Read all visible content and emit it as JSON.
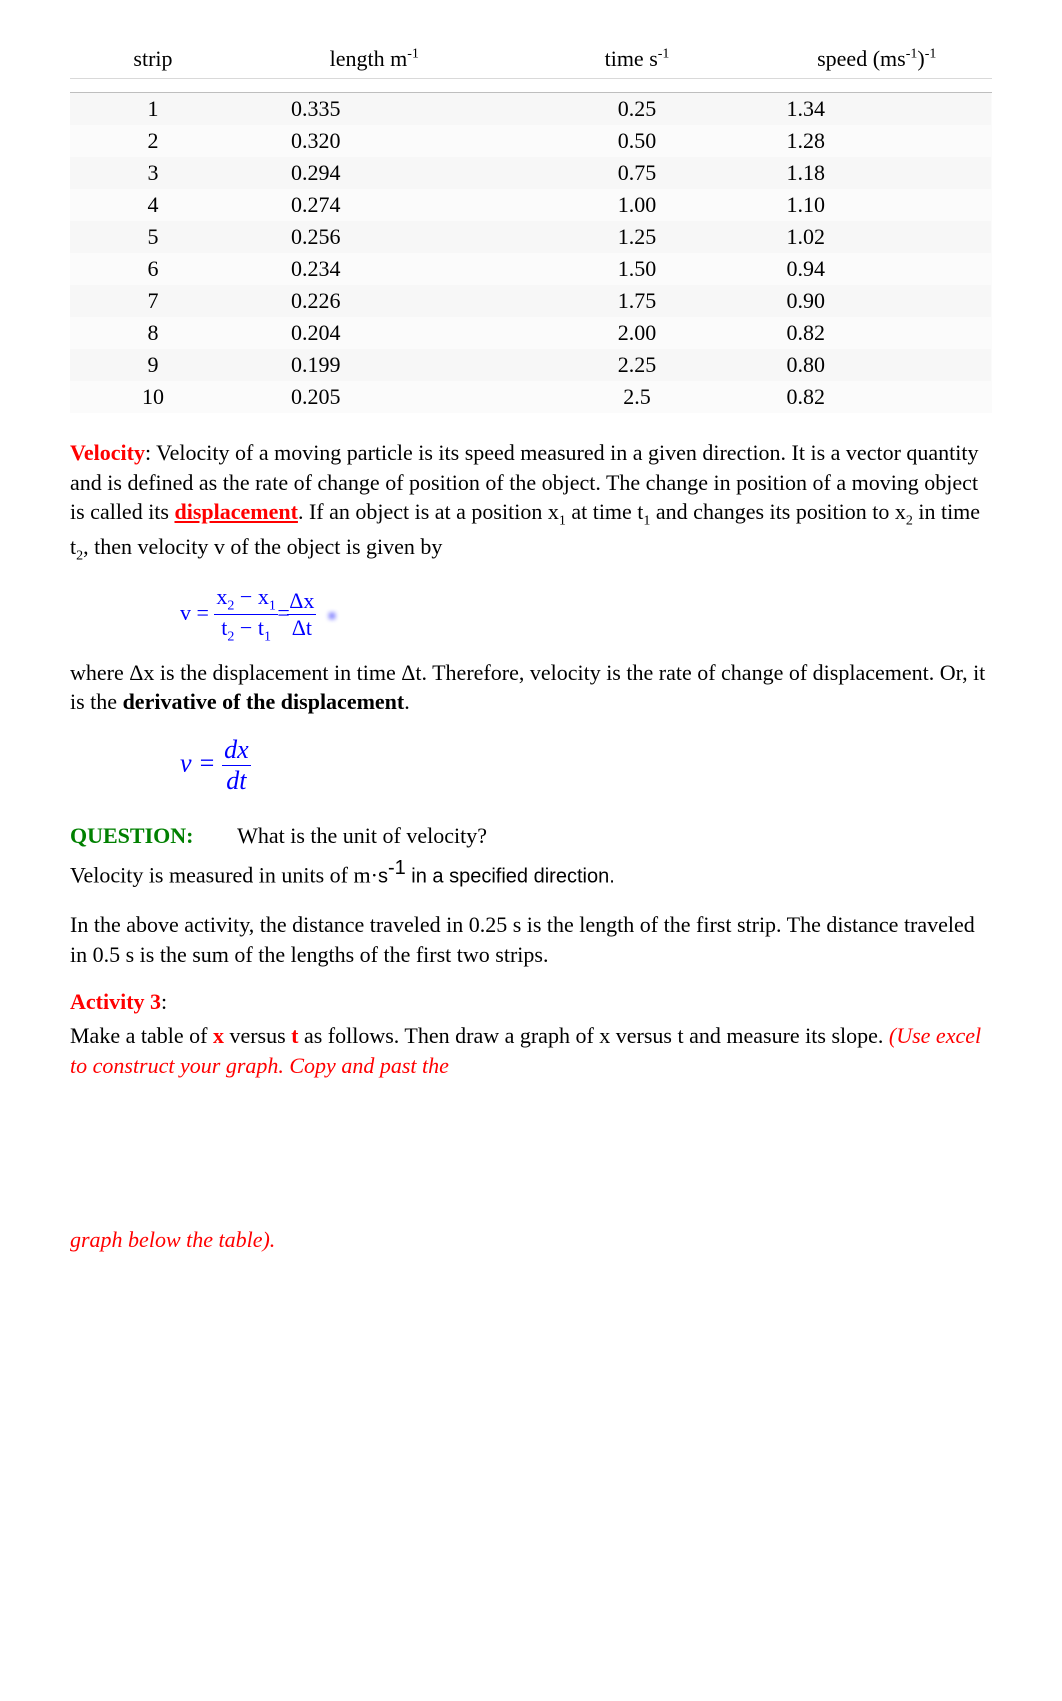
{
  "table": {
    "headers": {
      "strip": "strip",
      "length": "length m",
      "length_sup": "-1",
      "time": "time s",
      "time_sup": "-1",
      "speed": "speed (ms",
      "speed_sup1": "-1",
      "speed_mid": ")",
      "speed_sup2": "-1"
    },
    "rows": [
      {
        "strip": "1",
        "length": "0.335",
        "time": "0.25",
        "speed": "1.34"
      },
      {
        "strip": "2",
        "length": "0.320",
        "time": "0.50",
        "speed": "1.28"
      },
      {
        "strip": "3",
        "length": "0.294",
        "time": "0.75",
        "speed": "1.18"
      },
      {
        "strip": "4",
        "length": "0.274",
        "time": "1.00",
        "speed": "1.10"
      },
      {
        "strip": "5",
        "length": "0.256",
        "time": "1.25",
        "speed": "1.02"
      },
      {
        "strip": "6",
        "length": "0.234",
        "time": "1.50",
        "speed": "0.94"
      },
      {
        "strip": "7",
        "length": "0.226",
        "time": "1.75",
        "speed": "0.90"
      },
      {
        "strip": "8",
        "length": "0.204",
        "time": "2.00",
        "speed": "0.82"
      },
      {
        "strip": "9",
        "length": "0.199",
        "time": "2.25",
        "speed": "0.80"
      },
      {
        "strip": "10",
        "length": "0.205",
        "time": "2.5",
        "speed": "0.82"
      }
    ]
  },
  "velocity": {
    "label": "Velocity",
    "colon": ":   ",
    "text1": "Velocity of a moving particle is its speed measured in a given direction. It is a vector quantity and is defined as the rate of change of position of the object. The change in position of a moving object is called its ",
    "displacement": "displacement",
    "text2": ". If an object is at a position x",
    "sub1": "1",
    "text3": " at time t",
    "sub2": "1",
    "text4": " and changes its position to x",
    "sub3": "2",
    "text5": " in time t",
    "sub4": "2",
    "text6": ", then velocity v of the object is given by"
  },
  "formula1": {
    "prefix": "v = ",
    "num1": "x",
    "num1_sub": "2",
    "minus": " − ",
    "num2": "x",
    "num2_sub": "1",
    "den1": "t",
    "den1_sub": "2",
    "den_minus": " − ",
    "den2": "t",
    "den2_sub": "1",
    "eq": "= ",
    "dx_num": "Δx",
    "dx_den": "Δt"
  },
  "where": {
    "text1": "where ",
    "dx": "Δ",
    "text1b": "x is the displacement in time ",
    "dt": "Δ",
    "text1c": "t. Therefore, velocity is the rate of change of displacement. Or, it is the ",
    "bold": "derivative of the displacement",
    "text2": "."
  },
  "formula2": {
    "prefix": "v = ",
    "num": "dx",
    "den": "dt"
  },
  "question": {
    "label": "QUESTION:",
    "spacer": "        ",
    "text": "What is the unit of velocity?",
    "answer1": "Velocity is measured in units of m",
    "dot": "·",
    "answer2": "s",
    "sup": "-1",
    "answer3": " in a specified direction."
  },
  "above": {
    "text": "In the above activity, the distance traveled in 0.25 s is the length of the first strip. The distance traveled in 0.5 s is the sum of the lengths of the first two strips."
  },
  "activity3": {
    "label": "Activity 3",
    "colon": ":",
    "text1": "Make a table of ",
    "x": "x",
    "text2": " versus ",
    "t": "t",
    "text3": " as follows. Then draw a graph of x versus t and measure its slope. ",
    "italic": "(Use excel to construct your graph. Copy and past the"
  },
  "graph_below": {
    "text": "graph below the table)."
  }
}
